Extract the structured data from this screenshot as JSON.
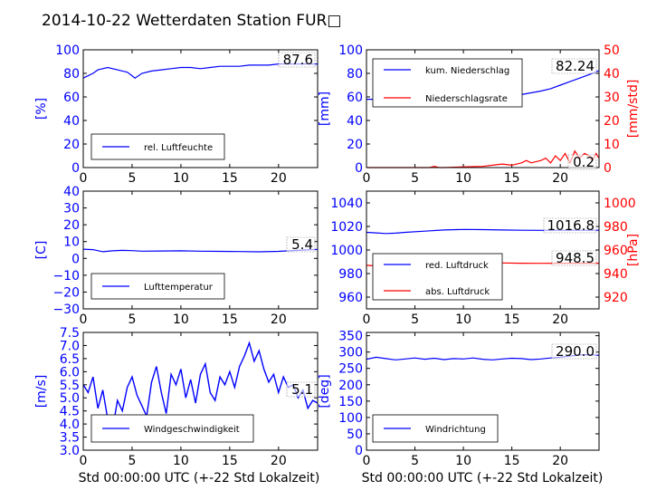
{
  "title": "2014-10-22 Wetterdaten Station FUR□",
  "xlabel": "Std 00:00:00 UTC (+-22 Std Lokalzeit)",
  "colors": {
    "primary": "#0000ff",
    "secondary": "#ff0000",
    "axis": "#000000"
  },
  "chart_data": [
    {
      "type": "line",
      "xlim": [
        0,
        24
      ],
      "xticks": [
        "0",
        "5",
        "10",
        "15",
        "20"
      ],
      "ylim": [
        0,
        100
      ],
      "yticks": [
        "0",
        "20",
        "40",
        "60",
        "80",
        "100"
      ],
      "ylabel": "[%]",
      "legend": "bottom-left",
      "series": [
        {
          "name": "rel. Luftfeuchte",
          "color": "#0000ff",
          "x": [
            0,
            0.5,
            1,
            1.5,
            2,
            2.5,
            3,
            3.5,
            4,
            4.5,
            5,
            5.3,
            6,
            7,
            8,
            9,
            10,
            11,
            12,
            13,
            14,
            15,
            16,
            17,
            18,
            19,
            20,
            21,
            22,
            23,
            24
          ],
          "y": [
            76,
            78,
            80,
            83,
            84,
            85,
            84,
            83,
            82,
            81,
            78,
            76,
            80,
            82,
            83,
            84,
            85,
            85,
            84,
            85,
            86,
            86,
            86,
            87,
            87,
            87,
            88,
            88,
            88,
            88,
            88
          ]
        }
      ],
      "value_label": "87.6"
    },
    {
      "type": "line",
      "xlim": [
        0,
        24
      ],
      "xticks": [
        "0",
        "5",
        "10",
        "15",
        "20"
      ],
      "ylim": [
        0,
        100
      ],
      "yticks": [
        "0",
        "20",
        "40",
        "60",
        "80",
        "100"
      ],
      "ylabel": "[mm]",
      "y2lim": [
        0,
        50
      ],
      "y2ticks": [
        "0",
        "10",
        "20",
        "30",
        "40",
        "50"
      ],
      "y2label": "[mm/std]",
      "legend": "top-left",
      "series": [
        {
          "name": "kum. Niederschlag",
          "color": "#0000ff",
          "x": [
            0,
            2,
            4,
            6,
            8,
            10,
            12,
            14,
            16,
            18,
            19,
            20,
            21,
            22,
            23,
            24
          ],
          "y": [
            58,
            58,
            58,
            58.3,
            58.5,
            59,
            59.5,
            60.5,
            62,
            65,
            67,
            70,
            73,
            76,
            79,
            82.24
          ]
        },
        {
          "name": "Niederschlagsrate",
          "color": "#ff0000",
          "axis": "right",
          "x": [
            0,
            6.5,
            7,
            7.5,
            8,
            10,
            12,
            13,
            14,
            15,
            16,
            16.5,
            17,
            18,
            18.5,
            19,
            19.5,
            20,
            20.5,
            21,
            21.5,
            22,
            22.5,
            23,
            23.3,
            23.7,
            24
          ],
          "y": [
            0,
            0,
            0.5,
            0,
            0,
            0.3,
            0.5,
            1,
            1.5,
            1,
            2,
            3,
            2,
            3,
            4,
            2,
            5,
            3,
            6,
            2,
            7,
            4,
            6,
            5,
            3,
            6,
            4
          ]
        }
      ],
      "value_labels": [
        "82.24",
        "0.2"
      ]
    },
    {
      "type": "line",
      "xlim": [
        0,
        24
      ],
      "xticks": [
        "0",
        "5",
        "10",
        "15",
        "20"
      ],
      "ylim": [
        -30,
        40
      ],
      "yticks": [
        "−30",
        "−20",
        "−10",
        "0",
        "10",
        "20",
        "30",
        "40"
      ],
      "ylabel": "[C]",
      "legend": "bottom-left",
      "series": [
        {
          "name": "Lufttemperatur",
          "color": "#0000ff",
          "x": [
            0,
            1,
            2,
            3,
            4,
            5,
            6,
            8,
            10,
            12,
            14,
            16,
            18,
            20,
            22,
            24
          ],
          "y": [
            5.5,
            5.2,
            4,
            4.5,
            4.8,
            4.6,
            4.3,
            4.4,
            4.5,
            4.3,
            4.2,
            4.1,
            3.9,
            4.2,
            4.8,
            5.4
          ]
        }
      ],
      "value_label": "5.4"
    },
    {
      "type": "line",
      "xlim": [
        0,
        24
      ],
      "xticks": [
        "0",
        "5",
        "10",
        "15",
        "20"
      ],
      "ylim": [
        950,
        1050
      ],
      "yticks": [
        "960",
        "980",
        "1000",
        "1020",
        "1040"
      ],
      "y2lim": [
        910,
        1010
      ],
      "y2ticks": [
        "920",
        "940",
        "960",
        "980",
        "1000"
      ],
      "y2label": "[hPa]",
      "legend": "bottom-left",
      "series": [
        {
          "name": "red. Luftdruck",
          "color": "#0000ff",
          "x": [
            0,
            1,
            2,
            3,
            4,
            6,
            8,
            10,
            12,
            14,
            16,
            18,
            20,
            22,
            24
          ],
          "y": [
            1015,
            1014.5,
            1014,
            1014.3,
            1015,
            1016,
            1017,
            1017.5,
            1017.3,
            1017,
            1016.8,
            1016.7,
            1016.8,
            1016.8,
            1016.8
          ]
        },
        {
          "name": "abs. Luftdruck",
          "color": "#ff0000",
          "x": [
            0,
            1,
            2,
            3,
            4,
            6,
            8,
            10,
            12,
            14,
            16,
            18,
            20,
            22,
            24
          ],
          "y": [
            987,
            986.5,
            986,
            986.3,
            987,
            988,
            989,
            989.5,
            989.3,
            989,
            988.8,
            988.7,
            988.8,
            988.8,
            988.8
          ]
        }
      ],
      "value_labels": [
        "1016.8",
        "948.5"
      ]
    },
    {
      "type": "line",
      "xlim": [
        0,
        24
      ],
      "xticks": [
        "0",
        "5",
        "10",
        "15",
        "20"
      ],
      "ylim": [
        3.0,
        7.5
      ],
      "yticks": [
        "3.0",
        "3.5",
        "4.0",
        "4.5",
        "5.0",
        "5.5",
        "6.0",
        "6.5",
        "7.0",
        "7.5"
      ],
      "ylabel": "[m/s]",
      "legend": "bottom-left",
      "series": [
        {
          "name": "Windgeschwindigkeit",
          "color": "#0000ff",
          "x": [
            0,
            0.5,
            1,
            1.5,
            2,
            2.5,
            3,
            3.5,
            4,
            4.5,
            5,
            5.5,
            6,
            6.5,
            7,
            7.5,
            8,
            8.5,
            9,
            9.5,
            10,
            10.5,
            11,
            11.5,
            12,
            12.5,
            13,
            13.5,
            14,
            14.5,
            15,
            15.5,
            16,
            16.5,
            17,
            17.5,
            18,
            18.5,
            19,
            19.5,
            20,
            20.5,
            21,
            21.5,
            22,
            22.5,
            23,
            23.5,
            24
          ],
          "y": [
            5.5,
            5.2,
            5.8,
            4.6,
            5.3,
            4.2,
            3.8,
            4.9,
            4.5,
            5.4,
            5.8,
            5.1,
            4.7,
            4.3,
            5.6,
            6.2,
            5.2,
            4.4,
            5.9,
            5.5,
            6.1,
            5.0,
            5.7,
            4.8,
            5.9,
            6.3,
            5.2,
            4.9,
            5.8,
            5.5,
            6.0,
            5.4,
            6.2,
            6.6,
            7.1,
            6.4,
            6.8,
            6.1,
            5.6,
            5.9,
            5.2,
            5.8,
            5.4,
            5.5,
            5.0,
            5.3,
            4.6,
            4.9,
            4.8
          ]
        }
      ],
      "value_label": "5.1"
    },
    {
      "type": "line",
      "xlim": [
        0,
        24
      ],
      "xticks": [
        "0",
        "5",
        "10",
        "15",
        "20"
      ],
      "ylim": [
        0,
        360
      ],
      "yticks": [
        "0",
        "50",
        "100",
        "150",
        "200",
        "250",
        "300",
        "350"
      ],
      "ylabel": "[deg]",
      "legend": "bottom-left",
      "series": [
        {
          "name": "Windrichtung",
          "color": "#0000ff",
          "x": [
            0,
            1,
            2,
            3,
            4,
            5,
            6,
            7,
            8,
            9,
            10,
            11,
            12,
            13,
            14,
            15,
            16,
            17,
            18,
            19,
            20,
            21,
            22,
            23,
            24
          ],
          "y": [
            278,
            284,
            280,
            276,
            279,
            282,
            278,
            281,
            277,
            280,
            279,
            282,
            278,
            276,
            279,
            281,
            280,
            277,
            279,
            282,
            284,
            288,
            291,
            292,
            290
          ]
        }
      ],
      "value_label": "290.0"
    }
  ]
}
